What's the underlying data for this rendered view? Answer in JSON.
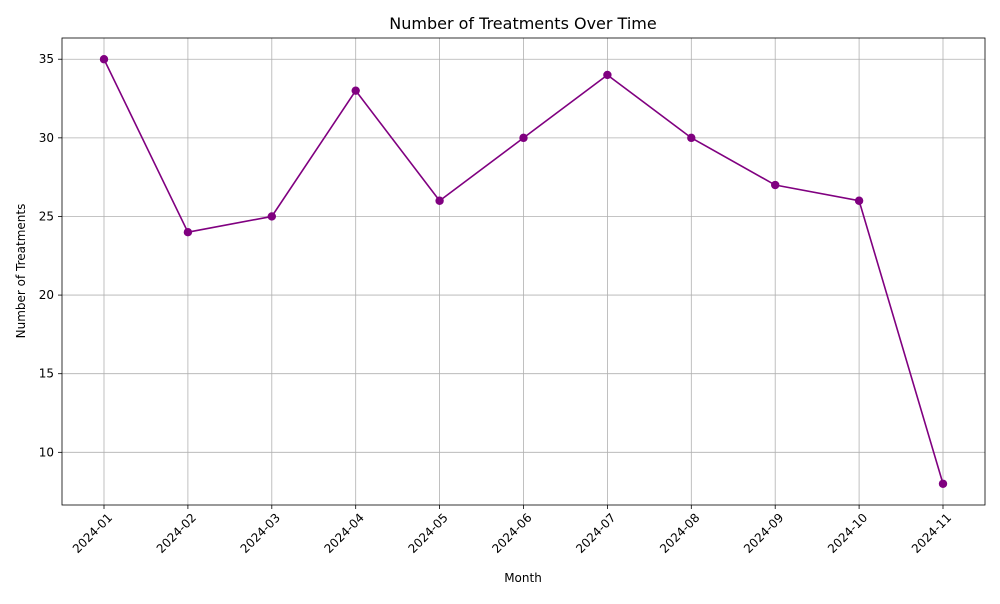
{
  "chart_data": {
    "type": "line",
    "title": "Number of Treatments Over Time",
    "xlabel": "Month",
    "ylabel": "Number of Treatments",
    "x": [
      "2024-01",
      "2024-02",
      "2024-03",
      "2024-04",
      "2024-05",
      "2024-06",
      "2024-07",
      "2024-08",
      "2024-09",
      "2024-10",
      "2024-11"
    ],
    "series": [
      {
        "values": [
          35,
          24,
          25,
          33,
          26,
          30,
          34,
          30,
          27,
          26,
          8
        ],
        "color": "#800080",
        "marker": "circle"
      }
    ],
    "ylim": [
      6.65,
      36.35
    ],
    "yticks": [
      10,
      15,
      20,
      25,
      30,
      35
    ],
    "grid": true,
    "xtick_rotation_deg": 45
  }
}
